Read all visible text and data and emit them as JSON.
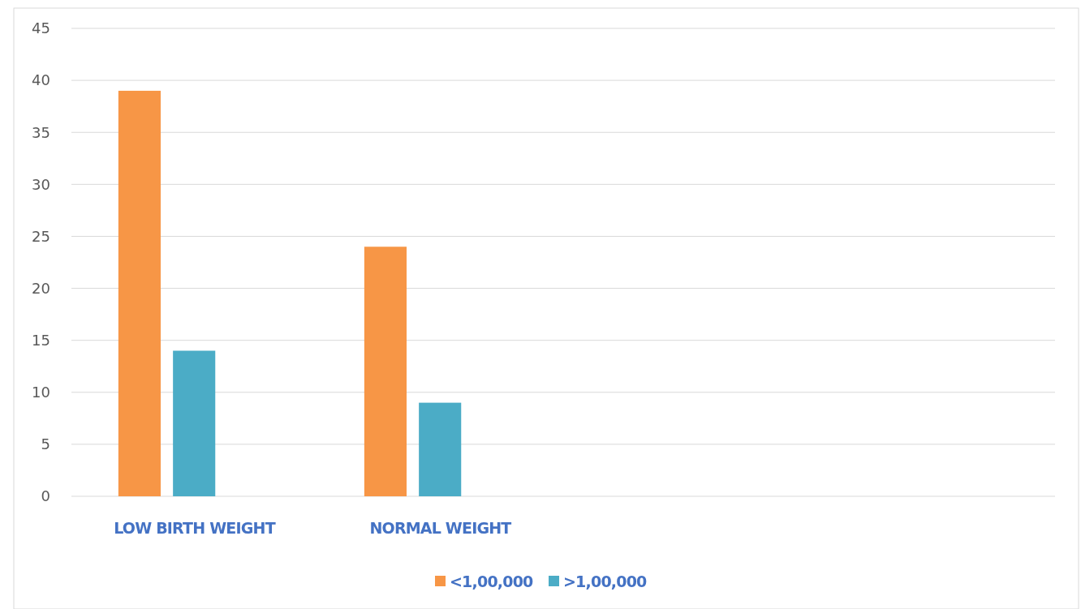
{
  "chart_data": {
    "type": "bar",
    "categories": [
      "LOW BIRTH WEIGHT",
      "NORMAL WEIGHT",
      null,
      null
    ],
    "series": [
      {
        "name": "<1,00,000",
        "color": "#f79646",
        "values": [
          39,
          24,
          null,
          null
        ]
      },
      {
        "name": ">1,00,000",
        "color": "#4bacc6",
        "values": [
          14,
          9,
          null,
          null
        ]
      }
    ],
    "ylim": [
      0,
      45
    ],
    "yticks": [
      0,
      5,
      10,
      15,
      20,
      25,
      30,
      35,
      40,
      45
    ],
    "grid": "y",
    "legend": "bottom"
  }
}
